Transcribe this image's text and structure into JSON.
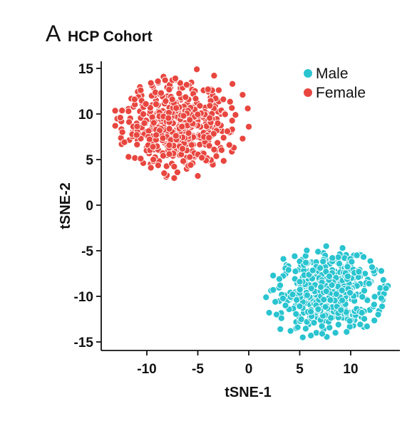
{
  "panel": {
    "letter": "A",
    "title": "HCP Cohort"
  },
  "chart_data": {
    "type": "scatter",
    "xlabel": "tSNE-1",
    "ylabel": "tSNE-2",
    "xlim": [
      -14.5,
      14.5
    ],
    "ylim": [
      -16,
      16
    ],
    "xticks": [
      -10,
      -5,
      0,
      5,
      10
    ],
    "yticks": [
      -15,
      -10,
      -5,
      0,
      5,
      10,
      15
    ],
    "grid": false,
    "legend_position": "top-right",
    "series": [
      {
        "name": "Male",
        "color": "#29c4d0",
        "approx_points": 500,
        "center": [
          7.8,
          -9.5
        ],
        "x_range": [
          1.5,
          13.3
        ],
        "y_range": [
          -14.5,
          -4.5
        ],
        "points": [
          [
            1.7,
            -10.1
          ],
          [
            2.0,
            -11.8
          ],
          [
            2.6,
            -10.6
          ],
          [
            3.1,
            -13.6
          ],
          [
            3.4,
            -5.9
          ],
          [
            4.1,
            -13.8
          ],
          [
            5.3,
            -14.5
          ],
          [
            4.5,
            -5.6
          ],
          [
            6.8,
            -5.1
          ],
          [
            7.6,
            -4.5
          ],
          [
            9.2,
            -4.7
          ],
          [
            10.6,
            -5.5
          ],
          [
            12.1,
            -6.8
          ],
          [
            13.2,
            -8.2
          ],
          [
            13.0,
            -10.2
          ],
          [
            12.7,
            -12.0
          ],
          [
            11.6,
            -13.3
          ],
          [
            9.6,
            -13.9
          ],
          [
            8.5,
            -14.0
          ],
          [
            7.2,
            -14.1
          ],
          [
            6.1,
            -14.3
          ],
          [
            4.8,
            -13.4
          ],
          [
            3.2,
            -12.4
          ],
          [
            3.0,
            -8.1
          ],
          [
            3.9,
            -7.1
          ],
          [
            5.6,
            -6.3
          ],
          [
            8.2,
            -5.8
          ],
          [
            10.1,
            -6.2
          ],
          [
            11.8,
            -8.6
          ],
          [
            12.3,
            -10.9
          ],
          [
            2.4,
            -9.3
          ],
          [
            3.6,
            -11.0
          ],
          [
            9.9,
            -12.7
          ],
          [
            10.8,
            -7.3
          ],
          [
            6.4,
            -12.9
          ],
          [
            8.8,
            -13.1
          ],
          [
            5.0,
            -8.4
          ],
          [
            7.0,
            -6.9
          ],
          [
            11.1,
            -11.8
          ],
          [
            4.3,
            -9.8
          ]
        ]
      },
      {
        "name": "Female",
        "color": "#e8463f",
        "approx_points": 500,
        "center": [
          -7.0,
          8.6
        ],
        "x_range": [
          -13.2,
          0.0
        ],
        "y_range": [
          3.4,
          14.9
        ],
        "points": [
          [
            -13.1,
            8.7
          ],
          [
            -12.6,
            9.6
          ],
          [
            -12.2,
            6.9
          ],
          [
            -11.8,
            5.3
          ],
          [
            -11.2,
            11.6
          ],
          [
            -10.6,
            12.6
          ],
          [
            -9.6,
            13.4
          ],
          [
            -8.2,
            13.7
          ],
          [
            -7.2,
            13.9
          ],
          [
            -5.1,
            14.9
          ],
          [
            -3.4,
            14.2
          ],
          [
            -1.6,
            13.3
          ],
          [
            -0.6,
            12.1
          ],
          [
            -0.1,
            10.6
          ],
          [
            0.0,
            8.6
          ],
          [
            -0.6,
            7.3
          ],
          [
            -1.9,
            6.6
          ],
          [
            -3.4,
            6.1
          ],
          [
            -4.6,
            5.2
          ],
          [
            -5.7,
            4.4
          ],
          [
            -7.0,
            3.6
          ],
          [
            -8.3,
            3.5
          ],
          [
            -9.6,
            4.1
          ],
          [
            -10.6,
            5.1
          ],
          [
            -12.4,
            8.0
          ],
          [
            -11.8,
            10.3
          ],
          [
            -10.1,
            11.1
          ],
          [
            -8.6,
            12.3
          ],
          [
            -6.1,
            13.2
          ],
          [
            -4.0,
            12.7
          ],
          [
            -2.5,
            11.6
          ],
          [
            -1.3,
            9.9
          ],
          [
            -2.1,
            8.1
          ],
          [
            -3.9,
            7.4
          ],
          [
            -5.6,
            6.6
          ],
          [
            -7.8,
            5.6
          ],
          [
            -9.4,
            6.4
          ],
          [
            -11.0,
            7.7
          ],
          [
            -6.4,
            9.8
          ],
          [
            -4.8,
            10.9
          ]
        ]
      }
    ]
  }
}
